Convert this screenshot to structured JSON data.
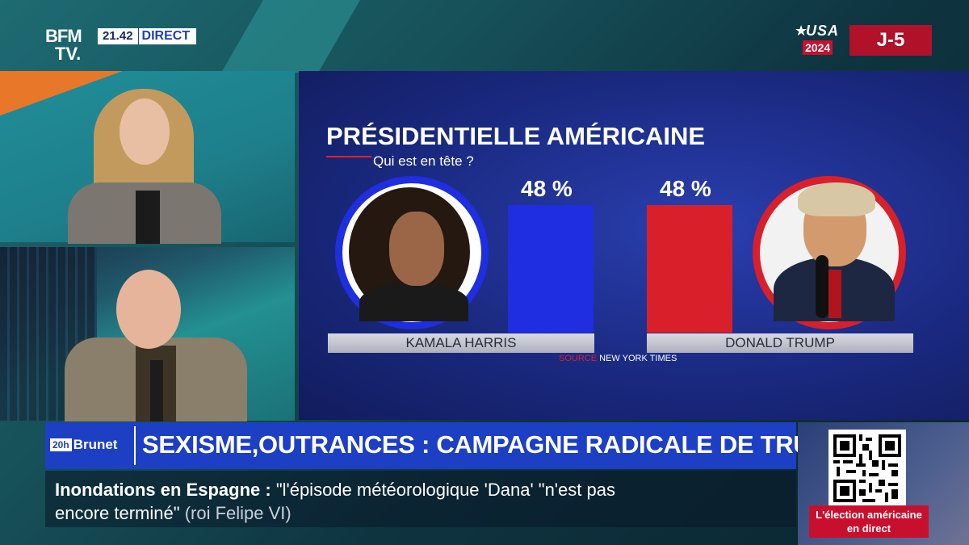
{
  "channel": {
    "logo_line1": "BFM",
    "logo_line2": "TV.",
    "time": "21.42",
    "live_label": "DIRECT"
  },
  "badge": {
    "star": "★",
    "word": "USA",
    "year": "2024",
    "countdown": "J-5"
  },
  "graphic": {
    "title": "PRÉSIDENTIELLE AMÉRICAINE",
    "subtitle": "Qui est en tête ?",
    "source_label": "SOURCE",
    "source_value": "NEW YORK TIMES",
    "colors": {
      "harris": "#1f2ee0",
      "trump": "#d9202a"
    }
  },
  "chart_data": {
    "type": "bar",
    "title": "PRÉSIDENTIELLE AMÉRICAINE",
    "subtitle": "Qui est en tête ?",
    "categories": [
      "KAMALA HARRIS",
      "DONALD TRUMP"
    ],
    "values": [
      48,
      48
    ],
    "value_labels": [
      "48 %",
      "48 %"
    ],
    "unit": "%",
    "colors": [
      "#1f2ee0",
      "#d9202a"
    ],
    "ylim": [
      0,
      48
    ],
    "grid": false,
    "source": "NEW YORK TIMES"
  },
  "lower_third": {
    "show_number": "20h",
    "show_name": "Brunet",
    "headline": "SEXISME,OUTRANCES : CAMPAGNE RADICALE DE TRUMP"
  },
  "ticker": {
    "topic": "Inondations en Espagne :",
    "quote_part1": "\"l'épisode météorologique 'Dana' \"n'est pas",
    "quote_part2": "encore terminé\"",
    "attribution": "(roi Felipe VI)"
  },
  "promo": {
    "label": "L'élection américaine en direct",
    "icon": "qr-code-icon"
  }
}
